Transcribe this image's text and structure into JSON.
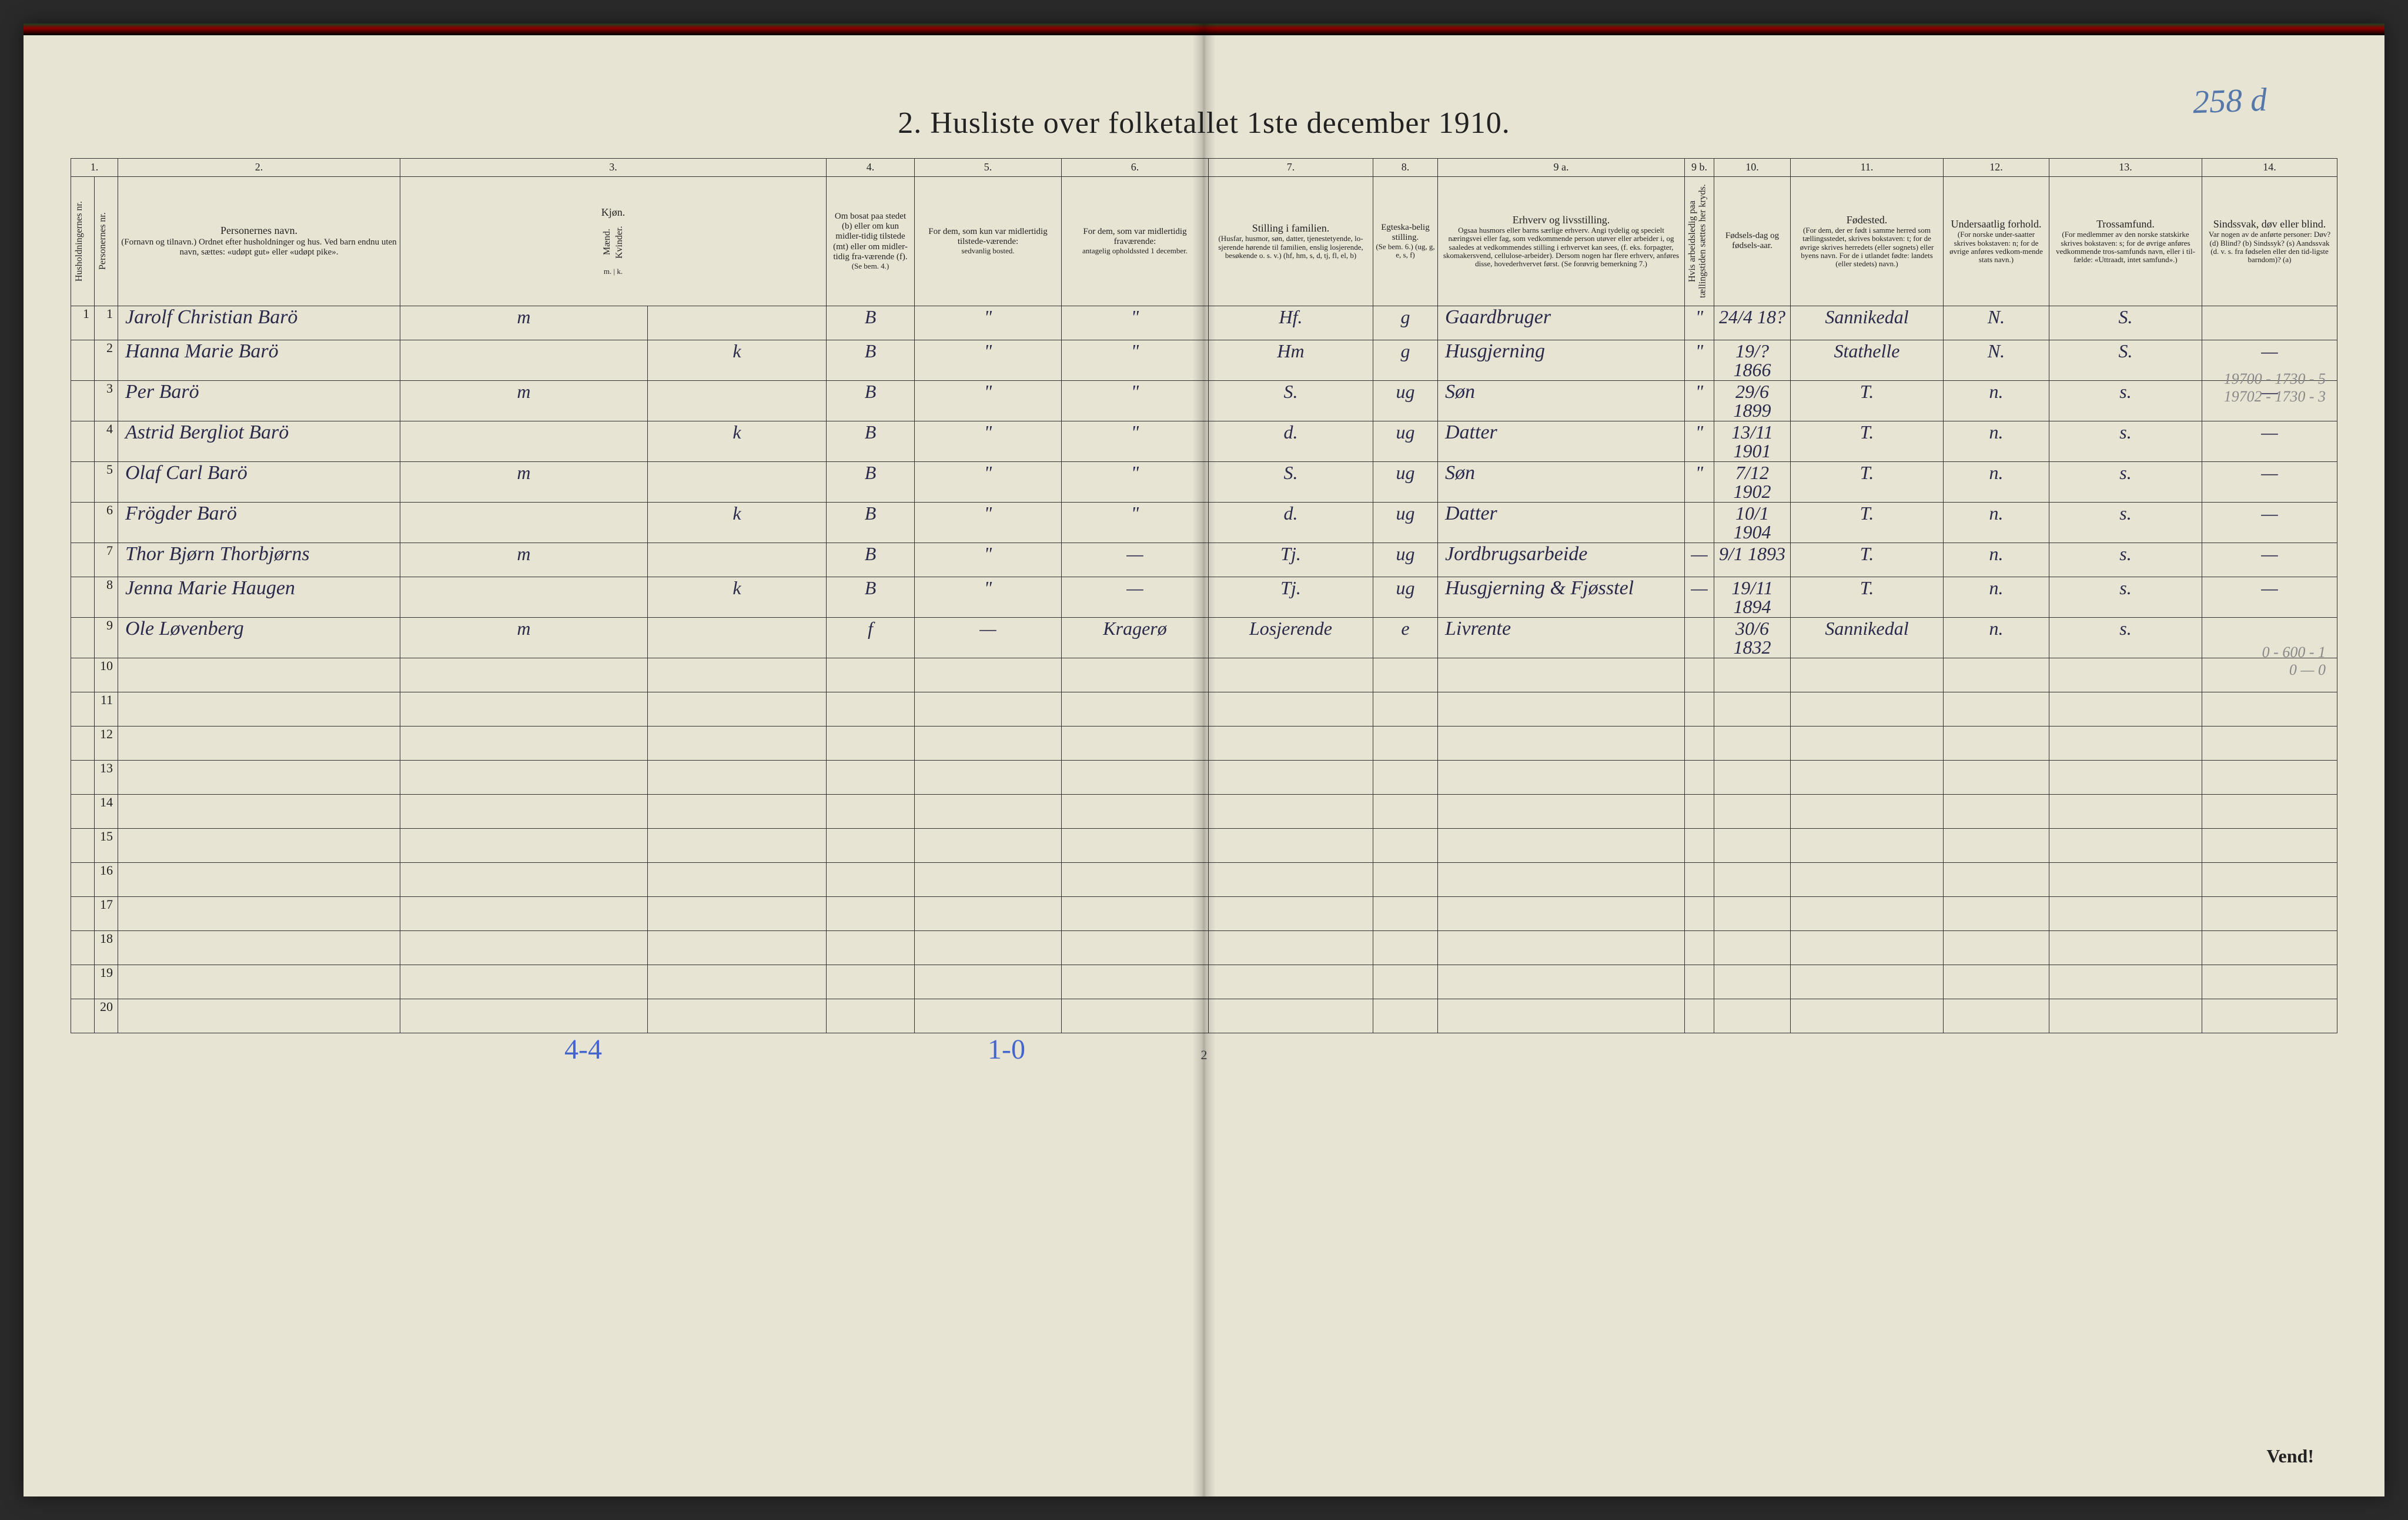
{
  "page_handwritten_number": "258 d",
  "title": "2.  Husliste over folketallet 1ste december 1910.",
  "column_numbers": [
    "1.",
    "",
    "2.",
    "3.",
    "",
    "4.",
    "5.",
    "6.",
    "7.",
    "8.",
    "9 a.",
    "9 b.",
    "10.",
    "11.",
    "12.",
    "13.",
    "14."
  ],
  "headers": {
    "col1a": "Husholdningernes nr.",
    "col1b": "Personernes nr.",
    "col2_title": "Personernes navn.",
    "col2_sub": "(Fornavn og tilnavn.)\nOrdnet efter husholdninger og hus.\nVed barn endnu uten navn, sættes: «udøpt gut» eller «udøpt pike».",
    "col3_title": "Kjøn.",
    "col3a": "Mænd.",
    "col3b": "Kvinder.",
    "col3_sub": "m. | k.",
    "col4_title": "Om bosat paa stedet (b) eller om kun midler-tidig tilstede (mt) eller om midler-tidig fra-værende (f).",
    "col4_sub": "(Se bem. 4.)",
    "col5_title": "For dem, som kun var midlertidig tilstede-værende:",
    "col5_sub": "sedvanlig bosted.",
    "col6_title": "For dem, som var midlertidig fraværende:",
    "col6_sub": "antagelig opholdssted 1 december.",
    "col7_title": "Stilling i familien.",
    "col7_sub": "(Husfar, husmor, søn, datter, tjenestetyende, lo-sjerende hørende til familien, enslig losjerende, besøkende o. s. v.)\n(hf, hm, s, d, tj, fl, el, b)",
    "col8_title": "Egteska-belig stilling.",
    "col8_sub": "(Se bem. 6.)\n(ug, g, e, s, f)",
    "col9a_title": "Erhverv og livsstilling.",
    "col9a_sub": "Ogsaa husmors eller barns særlige erhverv. Angi tydelig og specielt næringsvei eller fag, som vedkommende person utøver eller arbeider i, og saaledes at vedkommendes stilling i erhvervet kan sees, (f. eks. forpagter, skomakersvend, cellulose-arbeider). Dersom nogen har flere erhverv, anføres disse, hovederhvervet først.\n(Se forøvrig bemerkning 7.)",
    "col9b": "Hvis arbeidsledig paa tællingstiden sættes her kryds.",
    "col10_title": "Fødsels-dag og fødsels-aar.",
    "col11_title": "Fødested.",
    "col11_sub": "(For dem, der er født i samme herred som tællingsstedet, skrives bokstaven: t; for de øvrige skrives herredets (eller sognets) eller byens navn. For de i utlandet fødte: landets (eller stedets) navn.)",
    "col12_title": "Undersaatlig forhold.",
    "col12_sub": "(For norske under-saatter skrives bokstaven: n; for de øvrige anføres vedkom-mende stats navn.)",
    "col13_title": "Trossamfund.",
    "col13_sub": "(For medlemmer av den norske statskirke skrives bokstaven: s; for de øvrige anføres vedkommende tros-samfunds navn, eller i til-fælde: «Uttraadt, intet samfund».)",
    "col14_title": "Sindssvak, døv eller blind.",
    "col14_sub": "Var nogen av de anførte personer:\nDøv?        (d)\nBlind?      (b)\nSindssyk?   (s)\nAandssvak (d. v. s. fra fødselen eller den tid-ligste barndom)?  (a)"
  },
  "rows": [
    {
      "hnum": "1",
      "pnum": "1",
      "name": "Jarolf Christian Barö",
      "m": "m",
      "k": "",
      "bosat": "B",
      "sedvanlig": "\"",
      "fravar": "\"",
      "stilling": "Hf.",
      "egt": "g",
      "erhverv": "Gaardbruger",
      "ledig": "\"",
      "fodsel": "24/4 18?",
      "fodested": "Sannikedal",
      "under": "N.",
      "tros": "S.",
      "sind": ""
    },
    {
      "hnum": "",
      "pnum": "2",
      "name": "Hanna Marie Barö",
      "m": "",
      "k": "k",
      "bosat": "B",
      "sedvanlig": "\"",
      "fravar": "\"",
      "stilling": "Hm",
      "egt": "g",
      "erhverv": "Husgjerning",
      "ledig": "\"",
      "fodsel": "19/? 1866",
      "fodested": "Stathelle",
      "under": "N.",
      "tros": "S.",
      "sind": "—"
    },
    {
      "hnum": "",
      "pnum": "3",
      "name": "Per Barö",
      "m": "m",
      "k": "",
      "bosat": "B",
      "sedvanlig": "\"",
      "fravar": "\"",
      "stilling": "S.",
      "egt": "ug",
      "erhverv": "Søn",
      "ledig": "\"",
      "fodsel": "29/6 1899",
      "fodested": "T.",
      "under": "n.",
      "tros": "s.",
      "sind": "—"
    },
    {
      "hnum": "",
      "pnum": "4",
      "name": "Astrid Bergliot Barö",
      "m": "",
      "k": "k",
      "bosat": "B",
      "sedvanlig": "\"",
      "fravar": "\"",
      "stilling": "d.",
      "egt": "ug",
      "erhverv": "Datter",
      "ledig": "\"",
      "fodsel": "13/11 1901",
      "fodested": "T.",
      "under": "n.",
      "tros": "s.",
      "sind": "—"
    },
    {
      "hnum": "",
      "pnum": "5",
      "name": "Olaf Carl Barö",
      "m": "m",
      "k": "",
      "bosat": "B",
      "sedvanlig": "\"",
      "fravar": "\"",
      "stilling": "S.",
      "egt": "ug",
      "erhverv": "Søn",
      "ledig": "\"",
      "fodsel": "7/12 1902",
      "fodested": "T.",
      "under": "n.",
      "tros": "s.",
      "sind": "—"
    },
    {
      "hnum": "",
      "pnum": "6",
      "name": "Frögder Barö",
      "m": "",
      "k": "k",
      "bosat": "B",
      "sedvanlig": "\"",
      "fravar": "\"",
      "stilling": "d.",
      "egt": "ug",
      "erhverv": "Datter",
      "ledig": "",
      "fodsel": "10/1 1904",
      "fodested": "T.",
      "under": "n.",
      "tros": "s.",
      "sind": "—"
    },
    {
      "hnum": "",
      "pnum": "7",
      "name": "Thor Bjørn Thorbjørns",
      "m": "m",
      "k": "",
      "bosat": "B",
      "sedvanlig": "\"",
      "fravar": "—",
      "stilling": "Tj.",
      "egt": "ug",
      "erhverv": "Jordbrugsarbeide",
      "ledig": "—",
      "fodsel": "9/1 1893",
      "fodested": "T.",
      "under": "n.",
      "tros": "s.",
      "sind": "—"
    },
    {
      "hnum": "",
      "pnum": "8",
      "name": "Jenna Marie Haugen",
      "m": "",
      "k": "k",
      "bosat": "B",
      "sedvanlig": "\"",
      "fravar": "—",
      "stilling": "Tj.",
      "egt": "ug",
      "erhverv": "Husgjerning & Fjøsstel",
      "ledig": "—",
      "fodsel": "19/11 1894",
      "fodested": "T.",
      "under": "n.",
      "tros": "s.",
      "sind": "—"
    },
    {
      "hnum": "",
      "pnum": "9",
      "name": "Ole Løvenberg",
      "m": "m",
      "k": "",
      "bosat": "f",
      "sedvanlig": "—",
      "fravar": "Kragerø",
      "stilling": "Losjerende",
      "egt": "e",
      "erhverv": "Livrente",
      "ledig": "",
      "fodsel": "30/6 1832",
      "fodested": "Sannikedal",
      "under": "n.",
      "tros": "s.",
      "sind": ""
    }
  ],
  "empty_rows": [
    10,
    11,
    12,
    13,
    14,
    15,
    16,
    17,
    18,
    19,
    20
  ],
  "footer": {
    "mark_44": "4-4",
    "mark_10": "1-0",
    "page_num": "2",
    "vend": "Vend!"
  },
  "margin_notes": {
    "note1": "19700 - 1730 - 5",
    "note2": "19702 - 1730 - 3",
    "note3": "0 - 600 - 1",
    "note4": "0 — 0"
  },
  "styling": {
    "page_bg": "#e8e4d4",
    "body_bg": "#2a2a2a",
    "ink_color": "#222",
    "handwriting_color": "#2a2a4a",
    "blue_pencil": "#4466cc",
    "faded_pencil": "#888",
    "border_color": "#333",
    "title_fontsize": 52,
    "header_fontsize": 18,
    "body_fontsize": 32,
    "rownum_fontsize": 22
  }
}
